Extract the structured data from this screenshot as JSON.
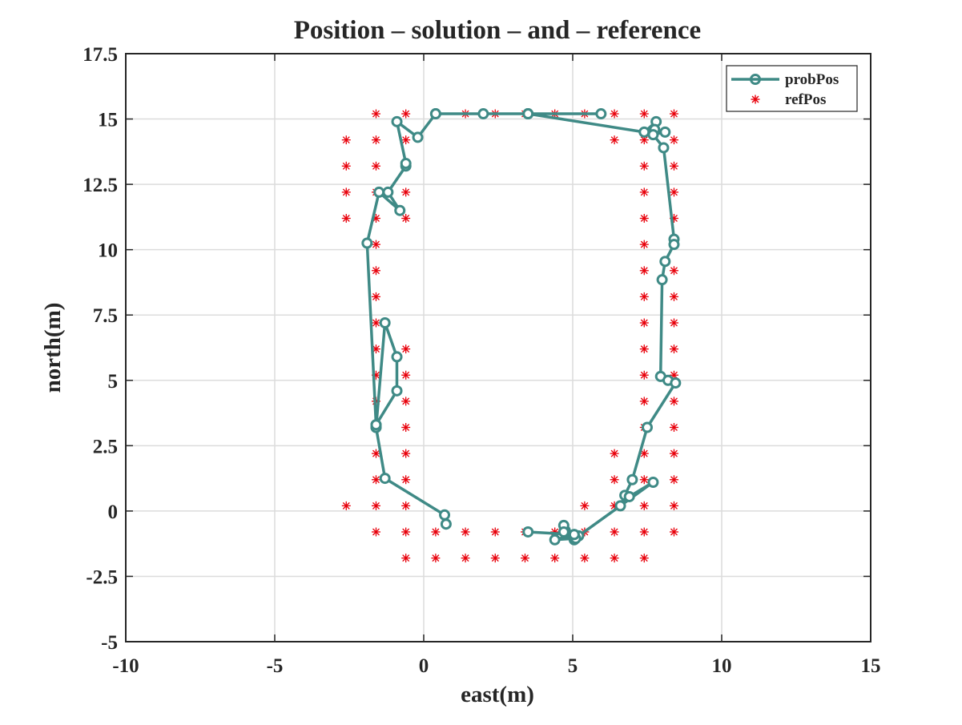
{
  "chart_data": {
    "type": "line",
    "title": "Position – solution – and – reference",
    "xlabel": "east(m)",
    "ylabel": "north(m)",
    "xlim": [
      -10,
      15
    ],
    "ylim": [
      -5,
      17.5
    ],
    "x_ticks": [
      -10,
      -5,
      0,
      5,
      10,
      15
    ],
    "y_ticks": [
      -5,
      -2.5,
      0,
      2.5,
      5,
      7.5,
      10,
      12.5,
      15,
      17.5
    ],
    "x_tick_labels": [
      "-10",
      "-5",
      "0",
      "5",
      "10",
      "15"
    ],
    "y_tick_labels": [
      "-5",
      "-2.5",
      "0",
      "2.5",
      "5",
      "7.5",
      "10",
      "12.5",
      "15",
      "17.5"
    ],
    "grid": true,
    "legend_position": "top-right",
    "colors": {
      "probPos": "#3f8a86",
      "refPos": "#e8000b",
      "axis": "#262626",
      "grid": "#dcdcdc"
    },
    "series": [
      {
        "name": "probPos",
        "style": "line-circle",
        "x": [
          0.75,
          0.7,
          -1.3,
          -1.6,
          -1.6,
          -0.9,
          -0.9,
          -1.3,
          -1.6,
          -1.6,
          -1.9,
          -1.5,
          -0.8,
          -1.2,
          -0.6,
          -0.6,
          -0.9,
          -0.2,
          0.4,
          0.4,
          2.0,
          3.5,
          3.5,
          5.95,
          3.5,
          7.4,
          7.8,
          7.75,
          8.1,
          7.7,
          8.05,
          8.4,
          8.4,
          8.1,
          8.0,
          7.95,
          8.2,
          8.45,
          7.5,
          7.0,
          6.75,
          6.6,
          6.9,
          7.7,
          5.2,
          5.05,
          4.75,
          4.7,
          4.7,
          5.05,
          5.1,
          4.4,
          5.05,
          3.5
        ],
        "y": [
          -0.5,
          -0.15,
          1.25,
          3.2,
          3.3,
          4.6,
          5.9,
          7.2,
          3.2,
          3.3,
          10.25,
          12.2,
          11.5,
          12.2,
          13.2,
          13.3,
          14.9,
          14.3,
          15.2,
          15.2,
          15.2,
          15.2,
          15.2,
          15.2,
          15.2,
          14.5,
          14.9,
          14.6,
          14.5,
          14.4,
          13.9,
          10.4,
          10.2,
          9.55,
          8.85,
          5.15,
          5.0,
          4.9,
          3.2,
          1.2,
          0.6,
          0.2,
          0.55,
          1.1,
          -0.95,
          -1.1,
          -0.75,
          -0.55,
          -0.8,
          -0.9,
          -1.05,
          -1.1,
          -0.9,
          -0.8
        ]
      },
      {
        "name": "refPos",
        "style": "markers-asterisk",
        "points": [
          [
            -1.6,
            15.2
          ],
          [
            -0.6,
            15.2
          ],
          [
            0.4,
            15.2
          ],
          [
            1.4,
            15.2
          ],
          [
            2.4,
            15.2
          ],
          [
            3.4,
            15.2
          ],
          [
            4.4,
            15.2
          ],
          [
            5.4,
            15.2
          ],
          [
            6.4,
            15.2
          ],
          [
            7.4,
            15.2
          ],
          [
            8.4,
            15.2
          ],
          [
            -2.6,
            14.2
          ],
          [
            -1.6,
            14.2
          ],
          [
            -0.6,
            14.2
          ],
          [
            6.4,
            14.2
          ],
          [
            7.4,
            14.2
          ],
          [
            8.4,
            14.2
          ],
          [
            -2.6,
            13.2
          ],
          [
            -1.6,
            13.2
          ],
          [
            -0.6,
            13.2
          ],
          [
            7.4,
            13.2
          ],
          [
            8.4,
            13.2
          ],
          [
            -2.6,
            12.2
          ],
          [
            -1.6,
            12.2
          ],
          [
            -0.6,
            12.2
          ],
          [
            7.4,
            12.2
          ],
          [
            8.4,
            12.2
          ],
          [
            -2.6,
            11.2
          ],
          [
            -1.6,
            11.2
          ],
          [
            -0.6,
            11.2
          ],
          [
            7.4,
            11.2
          ],
          [
            8.4,
            11.2
          ],
          [
            -1.6,
            10.2
          ],
          [
            7.4,
            10.2
          ],
          [
            8.4,
            10.2
          ],
          [
            -1.6,
            9.2
          ],
          [
            7.4,
            9.2
          ],
          [
            8.4,
            9.2
          ],
          [
            -1.6,
            8.2
          ],
          [
            7.4,
            8.2
          ],
          [
            8.4,
            8.2
          ],
          [
            -1.6,
            7.2
          ],
          [
            7.4,
            7.2
          ],
          [
            8.4,
            7.2
          ],
          [
            -1.6,
            6.2
          ],
          [
            -0.6,
            6.2
          ],
          [
            7.4,
            6.2
          ],
          [
            8.4,
            6.2
          ],
          [
            -1.6,
            5.2
          ],
          [
            -0.6,
            5.2
          ],
          [
            7.4,
            5.2
          ],
          [
            8.4,
            5.2
          ],
          [
            -1.6,
            4.2
          ],
          [
            -0.6,
            4.2
          ],
          [
            7.4,
            4.2
          ],
          [
            8.4,
            4.2
          ],
          [
            -1.6,
            3.2
          ],
          [
            -0.6,
            3.2
          ],
          [
            7.4,
            3.2
          ],
          [
            8.4,
            3.2
          ],
          [
            -1.6,
            2.2
          ],
          [
            -0.6,
            2.2
          ],
          [
            6.4,
            2.2
          ],
          [
            7.4,
            2.2
          ],
          [
            8.4,
            2.2
          ],
          [
            -1.6,
            1.2
          ],
          [
            -0.6,
            1.2
          ],
          [
            6.4,
            1.2
          ],
          [
            7.4,
            1.2
          ],
          [
            8.4,
            1.2
          ],
          [
            -2.6,
            0.2
          ],
          [
            -1.6,
            0.2
          ],
          [
            -0.6,
            0.2
          ],
          [
            5.4,
            0.2
          ],
          [
            6.4,
            0.2
          ],
          [
            7.4,
            0.2
          ],
          [
            8.4,
            0.2
          ],
          [
            -1.6,
            -0.8
          ],
          [
            -0.6,
            -0.8
          ],
          [
            0.4,
            -0.8
          ],
          [
            1.4,
            -0.8
          ],
          [
            2.4,
            -0.8
          ],
          [
            3.4,
            -0.8
          ],
          [
            4.4,
            -0.8
          ],
          [
            5.4,
            -0.8
          ],
          [
            6.4,
            -0.8
          ],
          [
            7.4,
            -0.8
          ],
          [
            8.4,
            -0.8
          ],
          [
            -0.6,
            -1.8
          ],
          [
            0.4,
            -1.8
          ],
          [
            1.4,
            -1.8
          ],
          [
            2.4,
            -1.8
          ],
          [
            3.4,
            -1.8
          ],
          [
            4.4,
            -1.8
          ],
          [
            5.4,
            -1.8
          ],
          [
            6.4,
            -1.8
          ],
          [
            7.4,
            -1.8
          ]
        ]
      }
    ]
  }
}
